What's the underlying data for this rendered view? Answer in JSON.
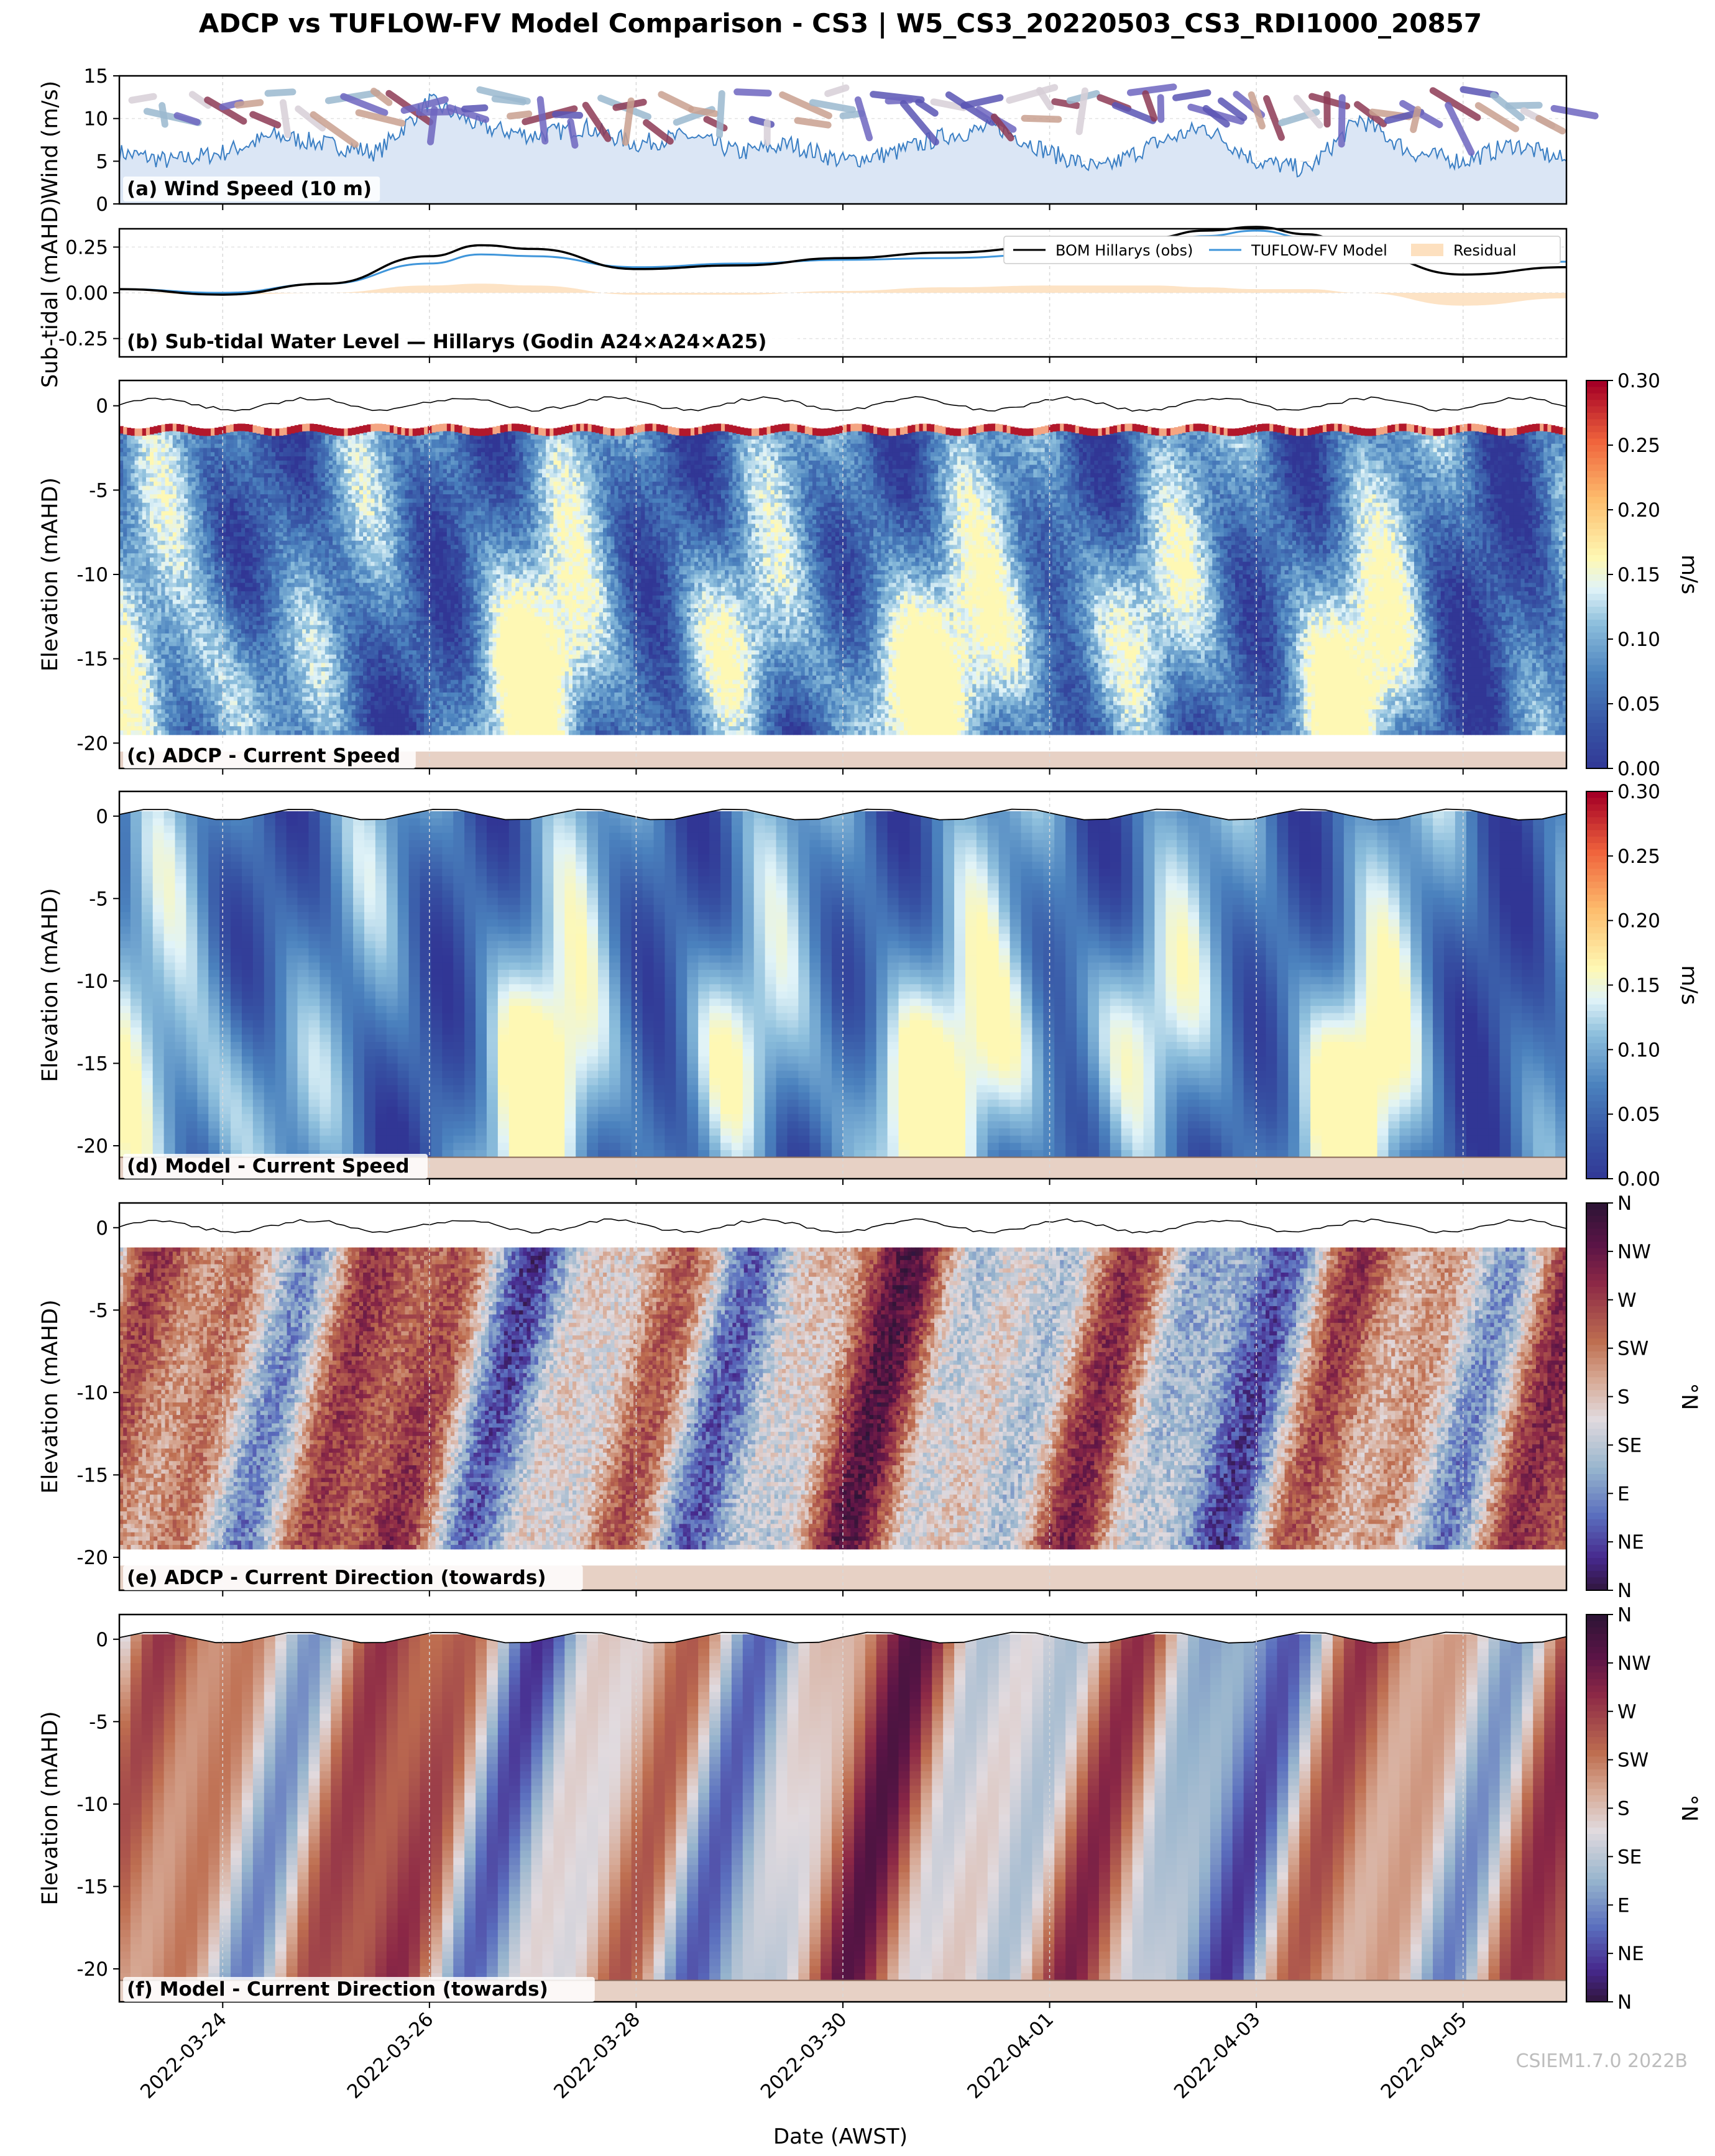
{
  "figure": {
    "title": "ADCP vs TUFLOW-FV Model Comparison - CS3 | W5_CS3_20220503_CS3_RDI1000_20857",
    "xlabel": "Date (AWST)",
    "watermark": "CSIEM1.7.0 2022B"
  },
  "colors": {
    "wind_line": "#3b7fc4",
    "wind_fill": "#dbe6f5",
    "obs_line": "#000000",
    "model_line": "#3e95da",
    "residual_fill": "#fde0bf",
    "seabed": "#e7d1c5",
    "speed_colormap": "RdYlBu_r",
    "direction_colormap": "twilight_shifted"
  },
  "chart_data": [
    {
      "id": "a",
      "type": "area",
      "label": "(a) Wind Speed (10 m)",
      "ylabel": "Wind (m/s)",
      "ylim": [
        0,
        15
      ],
      "yticks": [
        0,
        5,
        10,
        15
      ],
      "x": [
        "2022-03-23 00:00",
        "2022-03-23 12:00",
        "2022-03-24 00:00",
        "2022-03-24 12:00",
        "2022-03-25 00:00",
        "2022-03-25 12:00",
        "2022-03-26 00:00",
        "2022-03-26 12:00",
        "2022-03-27 00:00",
        "2022-03-27 12:00",
        "2022-03-28 00:00",
        "2022-03-28 12:00",
        "2022-03-29 00:00",
        "2022-03-29 12:00",
        "2022-03-30 00:00",
        "2022-03-30 12:00",
        "2022-03-31 00:00",
        "2022-03-31 12:00",
        "2022-04-01 00:00",
        "2022-04-01 12:00",
        "2022-04-02 00:00",
        "2022-04-02 12:00",
        "2022-04-03 00:00",
        "2022-04-03 12:00",
        "2022-04-04 00:00",
        "2022-04-04 12:00",
        "2022-04-05 00:00",
        "2022-04-05 12:00",
        "2022-04-06 00:00"
      ],
      "values": [
        6,
        5,
        6,
        8,
        7,
        6,
        12,
        9,
        8,
        9,
        7,
        8,
        6,
        7,
        5,
        6,
        8,
        9,
        6,
        4,
        7,
        9,
        5,
        4,
        10,
        6,
        5,
        7,
        5
      ],
      "arrows": "wind direction quivers along the top of the panel"
    },
    {
      "id": "b",
      "type": "line",
      "label": "(b) Sub-tidal Water Level — Hillarys (Godin A24×A24×A25)",
      "ylabel": "Sub-tidal (mAHD)",
      "ylim": [
        -0.35,
        0.35
      ],
      "yticks": [
        -0.25,
        0.0,
        0.25
      ],
      "legend_position": "upper right",
      "x": [
        "2022-03-23 00:00",
        "2022-03-24 00:00",
        "2022-03-25 00:00",
        "2022-03-26 00:00",
        "2022-03-26 12:00",
        "2022-03-27 00:00",
        "2022-03-28 00:00",
        "2022-03-29 00:00",
        "2022-03-30 00:00",
        "2022-03-31 00:00",
        "2022-04-01 00:00",
        "2022-04-02 00:00",
        "2022-04-02 12:00",
        "2022-04-03 00:00",
        "2022-04-03 12:00",
        "2022-04-04 00:00",
        "2022-04-05 00:00",
        "2022-04-06 00:00"
      ],
      "series": [
        {
          "name": "BOM Hillarys (obs)",
          "values": [
            0.02,
            -0.01,
            0.05,
            0.2,
            0.26,
            0.24,
            0.13,
            0.15,
            0.19,
            0.22,
            0.25,
            0.3,
            0.34,
            0.36,
            0.32,
            0.22,
            0.1,
            0.14
          ]
        },
        {
          "name": "TUFLOW-FV Model",
          "values": [
            0.02,
            0.0,
            0.05,
            0.16,
            0.21,
            0.2,
            0.14,
            0.16,
            0.18,
            0.19,
            0.21,
            0.26,
            0.31,
            0.34,
            0.3,
            0.22,
            0.17,
            0.17
          ]
        },
        {
          "name": "Residual",
          "values": [
            0.0,
            -0.01,
            0.0,
            0.04,
            0.05,
            0.04,
            -0.01,
            -0.01,
            0.01,
            0.03,
            0.04,
            0.04,
            0.03,
            0.02,
            0.02,
            0.0,
            -0.07,
            -0.03
          ]
        }
      ]
    },
    {
      "id": "c",
      "type": "heatmap",
      "label": "(c) ADCP - Current Speed",
      "ylabel": "Elevation (mAHD)",
      "ylim": [
        -21.5,
        1.5
      ],
      "yticks": [
        0,
        -5,
        -10,
        -15,
        -20
      ],
      "colorbar_label": "m/s",
      "colorbar_ticks": [
        "0.00",
        "0.05",
        "0.10",
        "0.15",
        "0.20",
        "0.25",
        "0.30"
      ],
      "vrange": [
        0,
        0.3
      ],
      "bin_range": [
        -19.5,
        -1.5
      ],
      "seabed": -20.5
    },
    {
      "id": "d",
      "type": "heatmap",
      "label": "(d) Model - Current Speed",
      "ylabel": "Elevation (mAHD)",
      "ylim": [
        -22,
        1.5
      ],
      "yticks": [
        0,
        -5,
        -10,
        -15,
        -20
      ],
      "colorbar_label": "m/s",
      "colorbar_ticks": [
        "0.00",
        "0.05",
        "0.10",
        "0.15",
        "0.20",
        "0.25",
        "0.30"
      ],
      "vrange": [
        0,
        0.3
      ],
      "bin_range": [
        -20.7,
        0.3
      ],
      "seabed": -20.7
    },
    {
      "id": "e",
      "type": "heatmap",
      "label": "(e) ADCP - Current Direction (towards)",
      "ylabel": "Elevation (mAHD)",
      "ylim": [
        -22,
        1.5
      ],
      "yticks": [
        0,
        -5,
        -10,
        -15,
        -20
      ],
      "colorbar_label": "°N",
      "colorbar_ticks": [
        "N",
        "NE",
        "E",
        "SE",
        "S",
        "SW",
        "W",
        "NW",
        "N"
      ],
      "vrange": [
        0,
        360
      ],
      "bin_range": [
        -19.5,
        -1.2
      ],
      "seabed": -20.5
    },
    {
      "id": "f",
      "type": "heatmap",
      "label": "(f) Model - Current Direction (towards)",
      "ylabel": "Elevation (mAHD)",
      "ylim": [
        -22,
        1.5
      ],
      "yticks": [
        0,
        -5,
        -10,
        -15,
        -20
      ],
      "colorbar_label": "°N",
      "colorbar_ticks": [
        "N",
        "NE",
        "E",
        "SE",
        "S",
        "SW",
        "W",
        "NW",
        "N"
      ],
      "vrange": [
        0,
        360
      ],
      "bin_range": [
        -20.7,
        0.3
      ],
      "seabed": -20.7
    }
  ],
  "x_axis": {
    "range": [
      "2022-03-23 00:00",
      "2022-04-06 00:00"
    ],
    "ticks": [
      "2022-03-24",
      "2022-03-26",
      "2022-03-28",
      "2022-03-30",
      "2022-04-01",
      "2022-04-03",
      "2022-04-05"
    ]
  }
}
